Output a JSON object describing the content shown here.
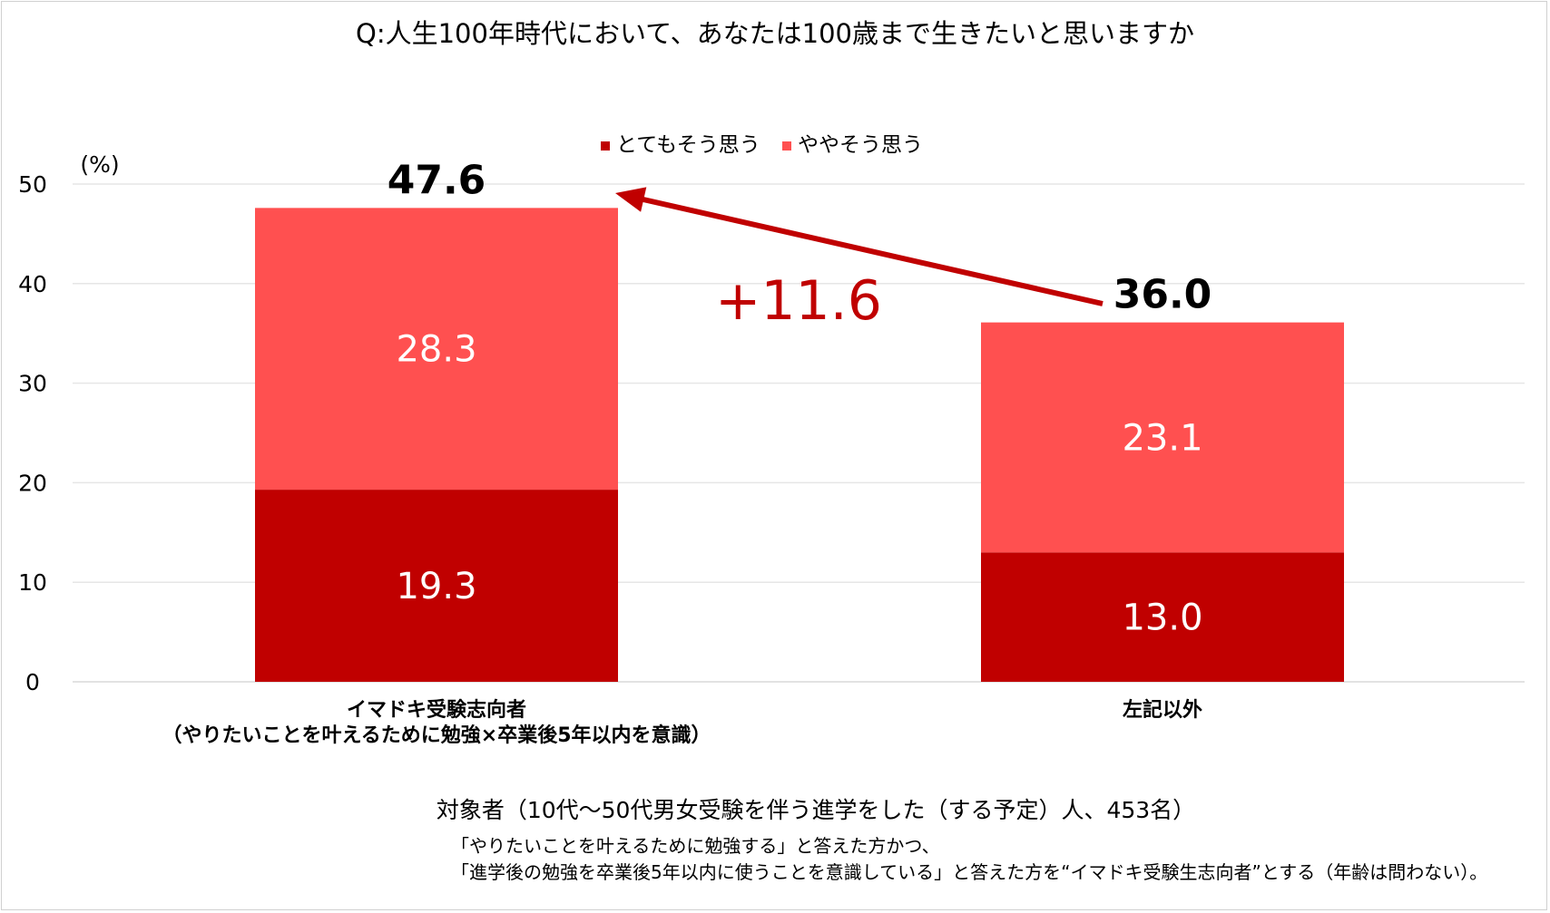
{
  "chart_data": {
    "type": "bar",
    "stacked": true,
    "title": "Q:人生100年時代において、あなたは100歳まで生きたいと思いますか",
    "ylabel": "(%)",
    "ylim": [
      0,
      50
    ],
    "yticks": [
      0,
      10,
      20,
      30,
      40,
      50
    ],
    "grid": true,
    "legend_position": "top-center",
    "categories": [
      [
        "イマドキ受験志向者",
        "（やりたいことを叶えるために勉強×卒業後5年以内を意識）"
      ],
      [
        "左記以外"
      ]
    ],
    "series": [
      {
        "name": "とてもそう思う",
        "values": [
          19.3,
          13.0
        ],
        "color": "#c00000"
      },
      {
        "name": "ややそう思う",
        "values": [
          28.3,
          23.1
        ],
        "color": "#ff5050"
      }
    ],
    "totals": [
      "47.6",
      "36.0"
    ],
    "segment_labels": [
      [
        "19.3",
        "28.3"
      ],
      [
        "13.0",
        "23.1"
      ]
    ],
    "annotation": {
      "text": "+11.6",
      "color": "#c00000"
    }
  },
  "subject": "対象者（10代～50代男女受験を伴う進学をした（する予定）人、453名）",
  "notes": [
    "「やりたいことを叶えるために勉強する」と答えた方かつ、",
    "「進学後の勉強を卒業後5年以内に使うことを意識している」と答えた方を“イマドキ受験生志向者”とする（年齢は問わない）。"
  ]
}
